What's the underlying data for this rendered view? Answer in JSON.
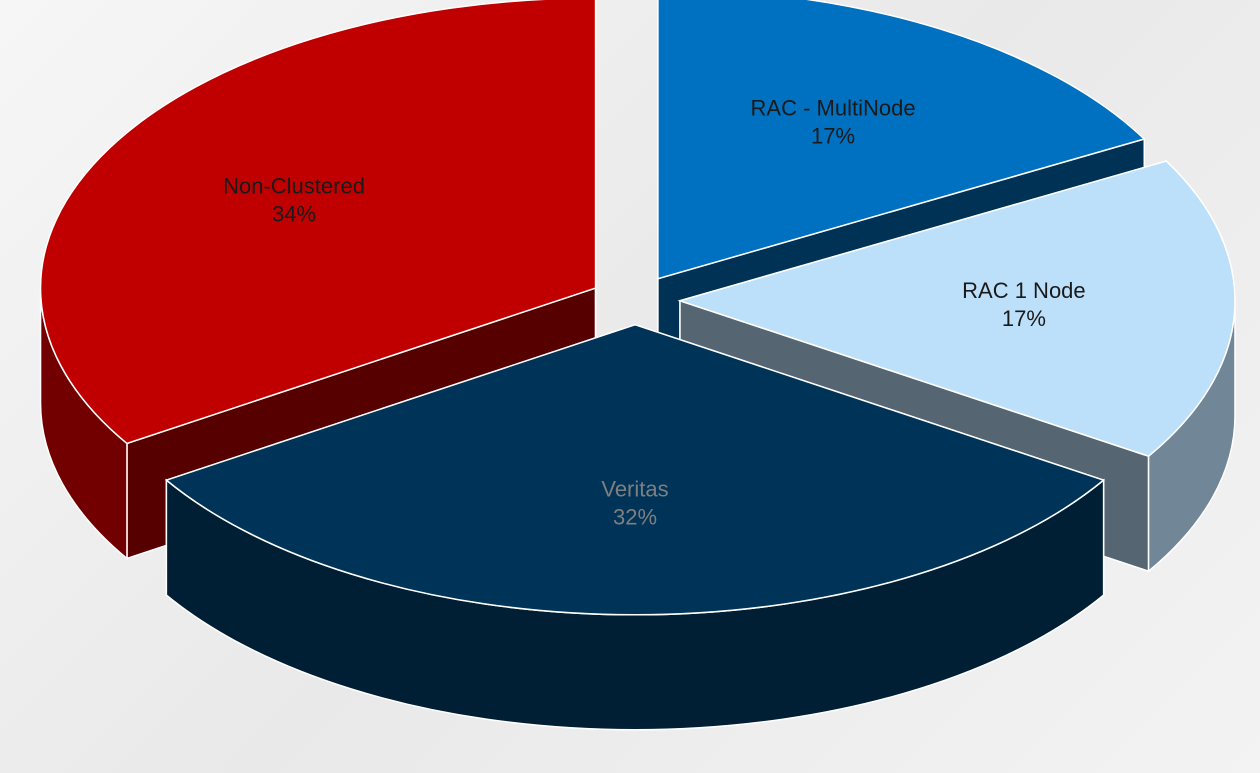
{
  "chart_data": {
    "type": "pie",
    "categories": [
      "RAC - MultiNode",
      "RAC 1 Node",
      "Veritas",
      "Non-Clustered"
    ],
    "values": [
      17,
      17,
      32,
      34
    ],
    "value_labels": [
      "17%",
      "17%",
      "32%",
      "34%"
    ],
    "colors": [
      "#0070c0",
      "#bde0fa",
      "#003358",
      "#c00000"
    ]
  }
}
